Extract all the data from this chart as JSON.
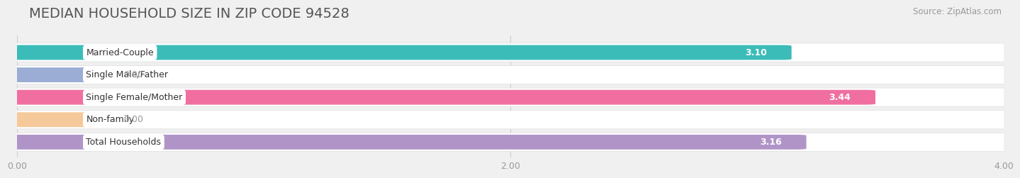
{
  "title": "MEDIAN HOUSEHOLD SIZE IN ZIP CODE 94528",
  "source": "Source: ZipAtlas.com",
  "categories": [
    "Married-Couple",
    "Single Male/Father",
    "Single Female/Mother",
    "Non-family",
    "Total Households"
  ],
  "values": [
    3.1,
    0.0,
    3.44,
    0.0,
    3.16
  ],
  "value_stubs": [
    3.1,
    0.35,
    3.44,
    0.35,
    3.16
  ],
  "bar_colors": [
    "#3bbcb8",
    "#9badd4",
    "#f06fa0",
    "#f5c99a",
    "#b094c8"
  ],
  "xlim": [
    0,
    4.0
  ],
  "xticks": [
    0.0,
    2.0,
    4.0
  ],
  "xtick_labels": [
    "0.00",
    "2.00",
    "4.00"
  ],
  "background_color": "#f0f0f0",
  "bar_bg_color": "#ffffff",
  "title_fontsize": 14,
  "label_fontsize": 9,
  "value_fontsize": 9,
  "source_fontsize": 8.5
}
